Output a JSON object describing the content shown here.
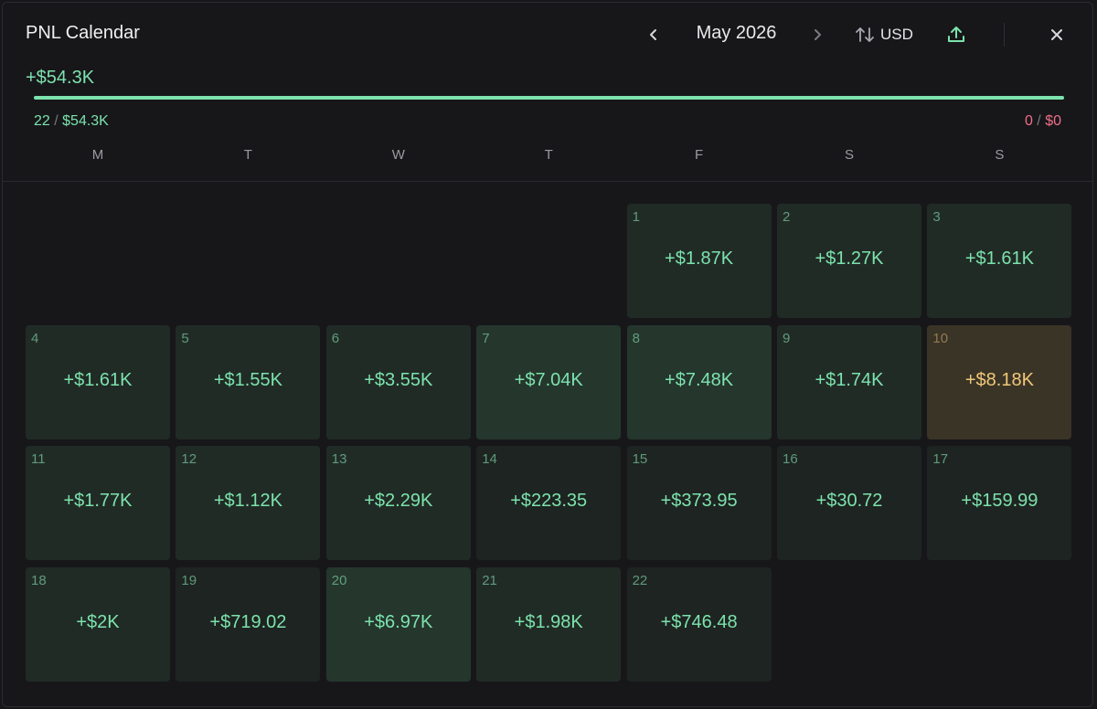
{
  "header": {
    "title": "PNL Calendar",
    "month": "May 2026",
    "currency": "USD",
    "icons": {
      "prev": "chevron-left-icon",
      "next": "chevron-right-icon",
      "currency": "sort-arrows-icon",
      "export": "upload-icon",
      "close": "close-icon"
    }
  },
  "summary": {
    "total": "+$54.3K",
    "win_count": "22",
    "win_amount": "$54.3K",
    "loss_count": "0",
    "loss_amount": "$0",
    "win_fraction": 1.0
  },
  "weekdays": [
    "M",
    "T",
    "W",
    "T",
    "F",
    "S",
    "S"
  ],
  "first_weekday_index": 4,
  "days": [
    {
      "day": "1",
      "pnl": "+$1.87K",
      "tone": "mid"
    },
    {
      "day": "2",
      "pnl": "+$1.27K",
      "tone": "mid"
    },
    {
      "day": "3",
      "pnl": "+$1.61K",
      "tone": "mid"
    },
    {
      "day": "4",
      "pnl": "+$1.61K",
      "tone": "mid"
    },
    {
      "day": "5",
      "pnl": "+$1.55K",
      "tone": "mid"
    },
    {
      "day": "6",
      "pnl": "+$3.55K",
      "tone": "mid"
    },
    {
      "day": "7",
      "pnl": "+$7.04K",
      "tone": "high"
    },
    {
      "day": "8",
      "pnl": "+$7.48K",
      "tone": "high"
    },
    {
      "day": "9",
      "pnl": "+$1.74K",
      "tone": "mid"
    },
    {
      "day": "10",
      "pnl": "+$8.18K",
      "tone": "best"
    },
    {
      "day": "11",
      "pnl": "+$1.77K",
      "tone": "mid"
    },
    {
      "day": "12",
      "pnl": "+$1.12K",
      "tone": "mid"
    },
    {
      "day": "13",
      "pnl": "+$2.29K",
      "tone": "mid"
    },
    {
      "day": "14",
      "pnl": "+$223.35",
      "tone": "low"
    },
    {
      "day": "15",
      "pnl": "+$373.95",
      "tone": "low"
    },
    {
      "day": "16",
      "pnl": "+$30.72",
      "tone": "low"
    },
    {
      "day": "17",
      "pnl": "+$159.99",
      "tone": "low"
    },
    {
      "day": "18",
      "pnl": "+$2K",
      "tone": "mid"
    },
    {
      "day": "19",
      "pnl": "+$719.02",
      "tone": "low"
    },
    {
      "day": "20",
      "pnl": "+$6.97K",
      "tone": "high"
    },
    {
      "day": "21",
      "pnl": "+$1.98K",
      "tone": "mid"
    },
    {
      "day": "22",
      "pnl": "+$746.48",
      "tone": "low"
    }
  ],
  "colors": {
    "positive": "#7ce3ad",
    "negative": "#ef6f86",
    "best_text": "#f2c879",
    "tone_low": "#1e2421",
    "tone_mid": "#212b26",
    "tone_high": "#25362d",
    "tone_best": "#3a3427",
    "daynum_positive": "#6fb892",
    "daynum_best": "#a88c58"
  }
}
